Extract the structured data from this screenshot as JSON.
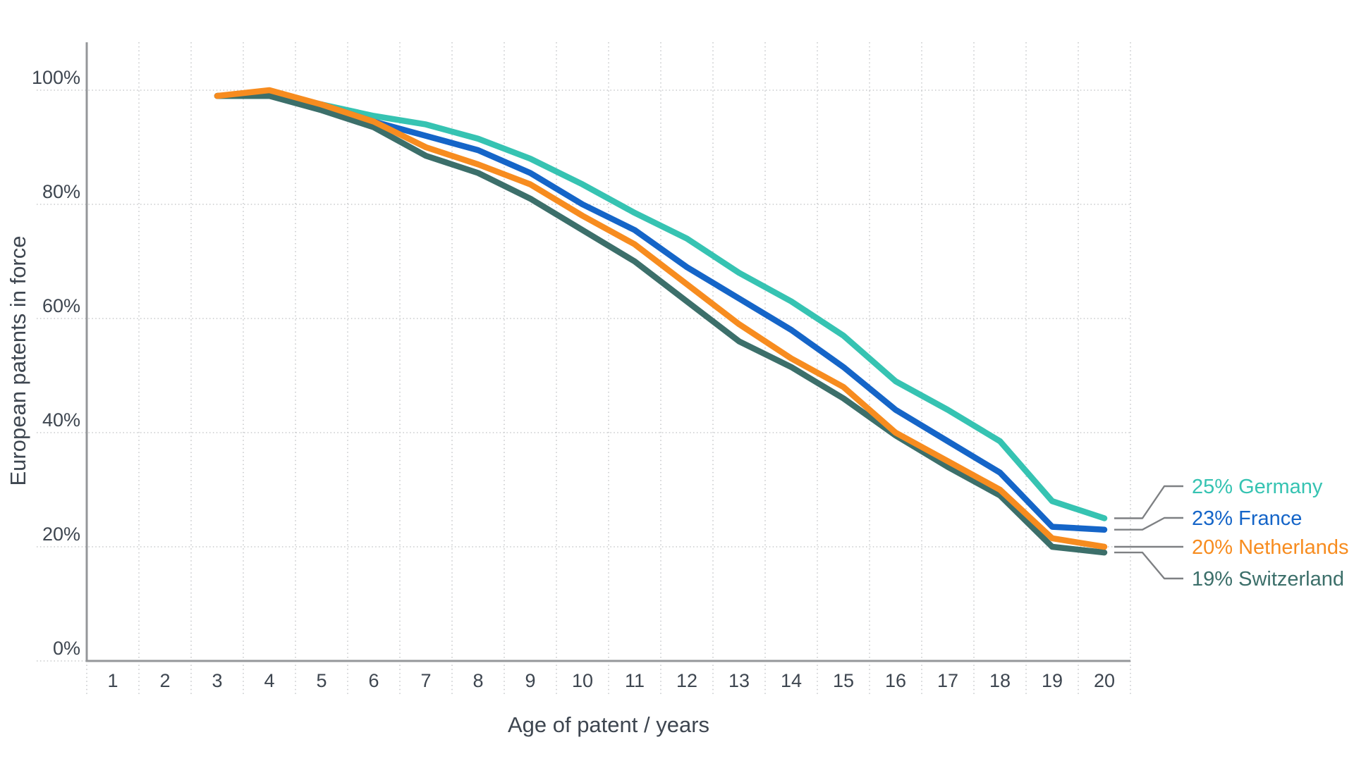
{
  "chart_data": {
    "type": "line",
    "title": "",
    "xlabel": "Age of patent / years",
    "ylabel": "European patents in force",
    "x": [
      3,
      4,
      5,
      6,
      7,
      8,
      9,
      10,
      11,
      12,
      13,
      14,
      15,
      16,
      17,
      18,
      19,
      20
    ],
    "x_axis_ticks": [
      "1",
      "2",
      "3",
      "4",
      "5",
      "6",
      "7",
      "8",
      "9",
      "10",
      "11",
      "12",
      "13",
      "14",
      "15",
      "16",
      "17",
      "18",
      "19",
      "20"
    ],
    "y_axis_tick_values": [
      0,
      20,
      40,
      60,
      80,
      100
    ],
    "y_axis_tick_labels": [
      "0%",
      "20%",
      "40%",
      "60%",
      "80%",
      "100%"
    ],
    "xlim": [
      0,
      20
    ],
    "ylim": [
      0,
      100
    ],
    "grid": "dotted",
    "legend_position": "right of line ends with callout connectors",
    "series": [
      {
        "name": "Germany",
        "label": "25% Germany",
        "end_value_label": "25%",
        "color": "#36C3B2",
        "values": [
          99,
          99,
          97.5,
          95.5,
          94,
          91.5,
          88,
          83.5,
          78.5,
          74,
          68,
          63,
          57,
          49,
          44,
          38.5,
          28,
          25
        ]
      },
      {
        "name": "France",
        "label": "23% France",
        "end_value_label": "23%",
        "color": "#1565C8",
        "values": [
          99,
          99.5,
          97.5,
          94.5,
          92,
          89.5,
          85.5,
          80,
          75.5,
          69,
          63.5,
          58,
          51.5,
          44,
          38.5,
          33,
          23.5,
          23
        ]
      },
      {
        "name": "Switzerland",
        "label": "19% Switzerland",
        "end_value_label": "19%",
        "color": "#3C6F6A",
        "values": [
          99,
          99,
          96.5,
          93.5,
          88.5,
          85.5,
          81,
          75.5,
          70,
          63,
          56,
          51.5,
          46,
          39.5,
          34,
          29,
          20,
          19
        ]
      },
      {
        "name": "Netherlands",
        "label": "20% Netherlands",
        "end_value_label": "20%",
        "color": "#F78C1F",
        "values": [
          99,
          100,
          97.5,
          94.5,
          90,
          87,
          83.5,
          78,
          73,
          66,
          59,
          53,
          48,
          40,
          35,
          30,
          21.5,
          20
        ]
      }
    ],
    "legend_order_top_to_bottom": [
      "Germany",
      "France",
      "Netherlands",
      "Switzerland"
    ]
  },
  "colors": {
    "background": "#FFFFFF",
    "axis_line": "#95979A",
    "grid_line": "#C8CACC",
    "tick_text": "#3E4650",
    "connector_line": "#7E8083"
  }
}
